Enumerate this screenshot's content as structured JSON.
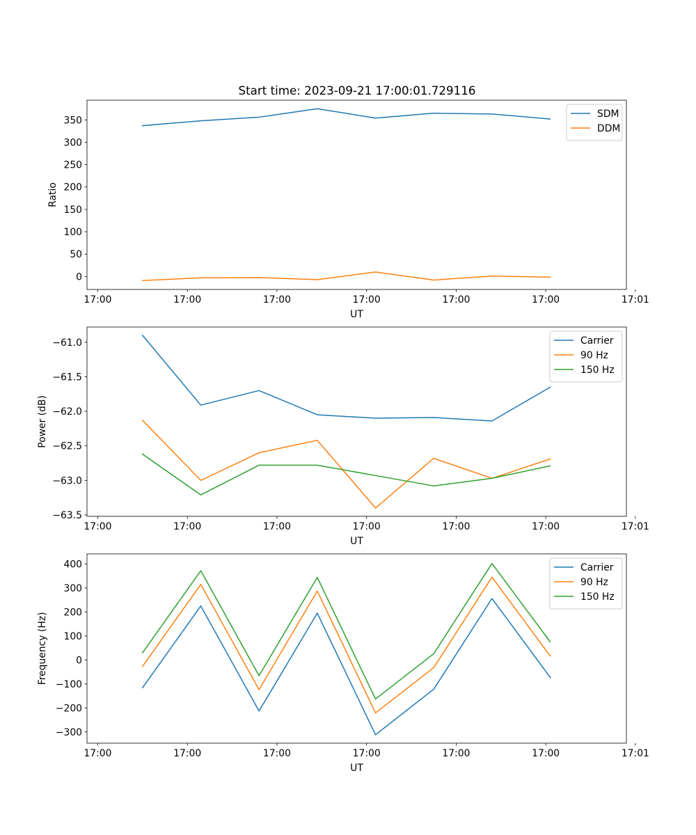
{
  "title": "Start time: 2023-09-21 17:00:01.729116",
  "colors": {
    "c0": "#1f77b4",
    "c1": "#ff7f0e",
    "c2": "#2ca02c"
  },
  "chart_data": [
    {
      "type": "line",
      "title": "Start time: 2023-09-21 17:00:01.729116",
      "xlabel": "UT",
      "ylabel": "Ratio",
      "x": [
        0.5,
        1.15,
        1.8,
        2.45,
        3.1,
        3.75,
        4.4,
        5.05
      ],
      "xlim": [
        -0.12,
        5.9
      ],
      "ylim": [
        -29,
        394
      ],
      "x_ticks": [
        0,
        1,
        2,
        3,
        4,
        5,
        6
      ],
      "x_tick_labels": [
        "17:00",
        "17:00",
        "17:00",
        "17:00",
        "17:00",
        "17:00",
        "17:01"
      ],
      "y_ticks": [
        0,
        50,
        100,
        150,
        200,
        250,
        300,
        350
      ],
      "y_tick_labels": [
        "0",
        "50",
        "100",
        "150",
        "200",
        "250",
        "300",
        "350"
      ],
      "legend_position": "top-right",
      "series": [
        {
          "name": "SDM",
          "color": "#1f77b4",
          "values": [
            337,
            348,
            356,
            375,
            354,
            365,
            363,
            352
          ]
        },
        {
          "name": "DDM",
          "color": "#ff7f0e",
          "values": [
            -9,
            -3,
            -2.5,
            -7,
            10,
            -8,
            1,
            -1.5
          ]
        }
      ]
    },
    {
      "type": "line",
      "title": "",
      "xlabel": "UT",
      "ylabel": "Power (dB)",
      "x": [
        0.5,
        1.15,
        1.8,
        2.45,
        3.1,
        3.75,
        4.4,
        5.05
      ],
      "xlim": [
        -0.12,
        5.9
      ],
      "ylim": [
        -63.52,
        -60.78
      ],
      "x_ticks": [
        0,
        1,
        2,
        3,
        4,
        5,
        6
      ],
      "x_tick_labels": [
        "17:00",
        "17:00",
        "17:00",
        "17:00",
        "17:00",
        "17:00",
        "17:01"
      ],
      "y_ticks": [
        -61.0,
        -61.5,
        -62.0,
        -62.5,
        -63.0,
        -63.5
      ],
      "y_tick_labels": [
        "−61.0",
        "−61.5",
        "−62.0",
        "−62.5",
        "−63.0",
        "−63.5"
      ],
      "legend_position": "top-right",
      "series": [
        {
          "name": "Carrier",
          "color": "#1f77b4",
          "values": [
            -60.9,
            -61.91,
            -61.7,
            -62.05,
            -62.1,
            -62.09,
            -62.14,
            -61.65
          ]
        },
        {
          "name": "90 Hz",
          "color": "#ff7f0e",
          "values": [
            -62.13,
            -63.0,
            -62.6,
            -62.42,
            -63.4,
            -62.68,
            -62.97,
            -62.69
          ]
        },
        {
          "name": "150 Hz",
          "color": "#2ca02c",
          "values": [
            -62.62,
            -63.21,
            -62.78,
            -62.78,
            -62.93,
            -63.08,
            -62.97,
            -62.79
          ]
        }
      ]
    },
    {
      "type": "line",
      "title": "",
      "xlabel": "UT",
      "ylabel": "Frequency (Hz)",
      "x": [
        0.5,
        1.15,
        1.8,
        2.45,
        3.1,
        3.75,
        4.4,
        5.05
      ],
      "xlim": [
        -0.12,
        5.9
      ],
      "ylim": [
        -347,
        442
      ],
      "x_ticks": [
        0,
        1,
        2,
        3,
        4,
        5,
        6
      ],
      "x_tick_labels": [
        "17:00",
        "17:00",
        "17:00",
        "17:00",
        "17:00",
        "17:00",
        "17:01"
      ],
      "y_ticks": [
        -300,
        -200,
        -100,
        0,
        100,
        200,
        300,
        400
      ],
      "y_tick_labels": [
        "−300",
        "−200",
        "−100",
        "0",
        "100",
        "200",
        "300",
        "400"
      ],
      "legend_position": "top-right",
      "series": [
        {
          "name": "Carrier",
          "color": "#1f77b4",
          "values": [
            -116,
            225,
            -213,
            195,
            -312,
            -122,
            256,
            -73
          ]
        },
        {
          "name": "90 Hz",
          "color": "#ff7f0e",
          "values": [
            -27,
            315,
            -124,
            287,
            -221,
            -32,
            345,
            16
          ]
        },
        {
          "name": "150 Hz",
          "color": "#2ca02c",
          "values": [
            30,
            372,
            -66,
            344,
            -163,
            26,
            402,
            75
          ]
        }
      ]
    }
  ]
}
